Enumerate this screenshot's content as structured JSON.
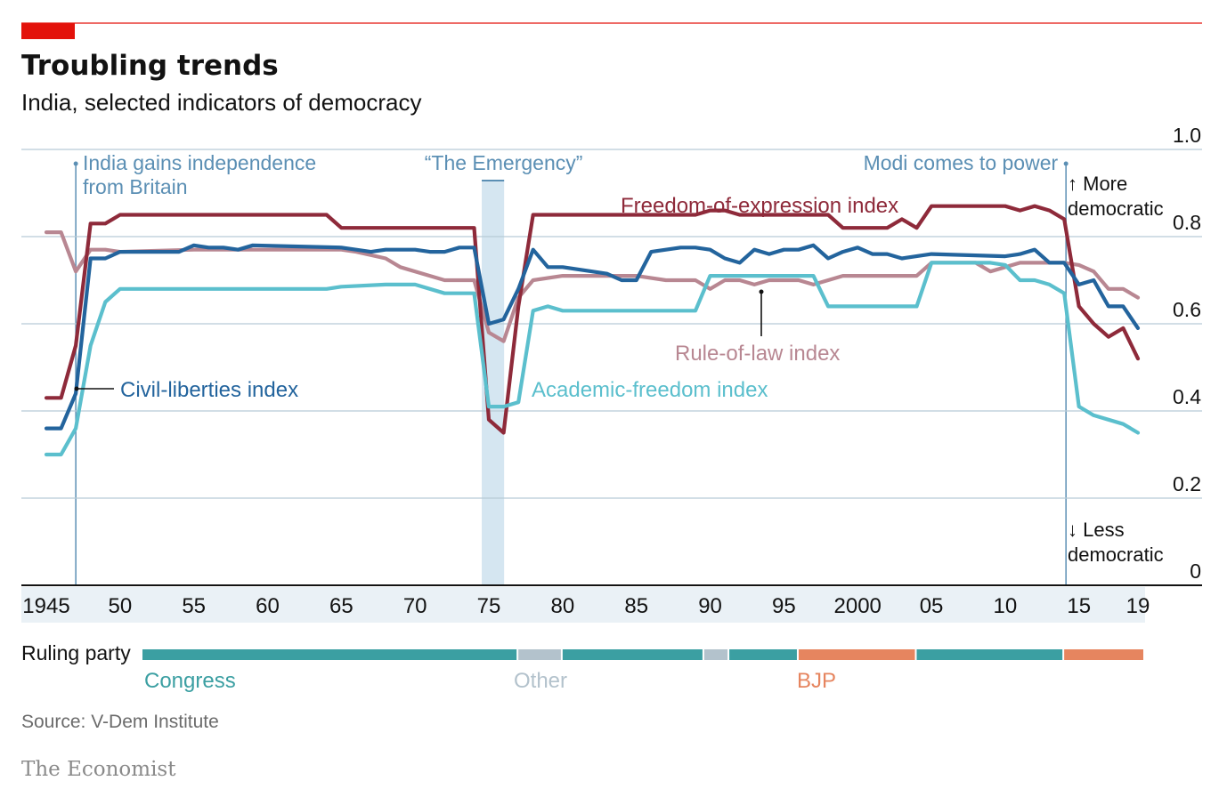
{
  "header": {
    "title": "Troubling trends",
    "subtitle": "India, selected indicators of democracy"
  },
  "chart_data": {
    "type": "line",
    "x_range": [
      1945,
      2019
    ],
    "ylim": [
      0,
      1.0
    ],
    "y_ticks": [
      {
        "value": 1.0,
        "label": "1.0"
      },
      {
        "value": 0.8,
        "label": "0.8"
      },
      {
        "value": 0.6,
        "label": "0.6"
      },
      {
        "value": 0.4,
        "label": "0.4"
      },
      {
        "value": 0.2,
        "label": "0.2"
      },
      {
        "value": 0,
        "label": "0"
      }
    ],
    "x_ticks": [
      {
        "value": 1945,
        "label": "1945"
      },
      {
        "value": 1950,
        "label": "50"
      },
      {
        "value": 1955,
        "label": "55"
      },
      {
        "value": 1960,
        "label": "60"
      },
      {
        "value": 1965,
        "label": "65"
      },
      {
        "value": 1970,
        "label": "70"
      },
      {
        "value": 1975,
        "label": "75"
      },
      {
        "value": 1980,
        "label": "80"
      },
      {
        "value": 1985,
        "label": "85"
      },
      {
        "value": 1990,
        "label": "90"
      },
      {
        "value": 1995,
        "label": "95"
      },
      {
        "value": 2000,
        "label": "2000"
      },
      {
        "value": 2005,
        "label": "05"
      },
      {
        "value": 2010,
        "label": "10"
      },
      {
        "value": 2015,
        "label": "15"
      },
      {
        "value": 2019,
        "label": "19"
      }
    ],
    "grid": true,
    "direction_labels": {
      "up": "↑ More\ndemocratic",
      "down": "↓ Less\ndemocratic"
    },
    "annotations": [
      {
        "id": "independence",
        "year": 1947,
        "text": "India gains independence\nfrom Britain"
      },
      {
        "id": "emergency",
        "start": 1975,
        "end": 1977,
        "text": "“The Emergency”"
      },
      {
        "id": "modi",
        "year": 2014,
        "text": "Modi comes to power"
      }
    ],
    "series": [
      {
        "name": "Rule-of-law index",
        "color": "#b88792",
        "points": [
          [
            1945,
            0.81
          ],
          [
            1946,
            0.81
          ],
          [
            1947,
            0.72
          ],
          [
            1948,
            0.77
          ],
          [
            1949,
            0.77
          ],
          [
            1950,
            0.765
          ],
          [
            1955,
            0.77
          ],
          [
            1960,
            0.77
          ],
          [
            1965,
            0.77
          ],
          [
            1966,
            0.765
          ],
          [
            1968,
            0.75
          ],
          [
            1969,
            0.73
          ],
          [
            1971,
            0.71
          ],
          [
            1972,
            0.7
          ],
          [
            1974,
            0.7
          ],
          [
            1975,
            0.58
          ],
          [
            1976,
            0.56
          ],
          [
            1977,
            0.66
          ],
          [
            1978,
            0.7
          ],
          [
            1980,
            0.71
          ],
          [
            1985,
            0.71
          ],
          [
            1987,
            0.7
          ],
          [
            1989,
            0.7
          ],
          [
            1990,
            0.68
          ],
          [
            1991,
            0.7
          ],
          [
            1992,
            0.7
          ],
          [
            1993,
            0.69
          ],
          [
            1994,
            0.7
          ],
          [
            1995,
            0.7
          ],
          [
            1996,
            0.7
          ],
          [
            1997,
            0.69
          ],
          [
            1998,
            0.7
          ],
          [
            1999,
            0.71
          ],
          [
            2004,
            0.71
          ],
          [
            2005,
            0.74
          ],
          [
            2008,
            0.74
          ],
          [
            2009,
            0.72
          ],
          [
            2010,
            0.73
          ],
          [
            2011,
            0.74
          ],
          [
            2013,
            0.74
          ],
          [
            2014,
            0.74
          ],
          [
            2015,
            0.735
          ],
          [
            2016,
            0.72
          ],
          [
            2017,
            0.68
          ],
          [
            2018,
            0.68
          ],
          [
            2019,
            0.66
          ]
        ]
      },
      {
        "name": "Freedom-of-expression index",
        "color": "#8e2a3a",
        "points": [
          [
            1945,
            0.43
          ],
          [
            1946,
            0.43
          ],
          [
            1947,
            0.55
          ],
          [
            1948,
            0.83
          ],
          [
            1949,
            0.83
          ],
          [
            1950,
            0.85
          ],
          [
            1954,
            0.85
          ],
          [
            1960,
            0.85
          ],
          [
            1964,
            0.85
          ],
          [
            1965,
            0.82
          ],
          [
            1970,
            0.82
          ],
          [
            1974,
            0.82
          ],
          [
            1975,
            0.38
          ],
          [
            1976,
            0.35
          ],
          [
            1977,
            0.64
          ],
          [
            1978,
            0.85
          ],
          [
            1985,
            0.85
          ],
          [
            1989,
            0.85
          ],
          [
            1990,
            0.86
          ],
          [
            1991,
            0.86
          ],
          [
            1992,
            0.85
          ],
          [
            1995,
            0.85
          ],
          [
            1998,
            0.85
          ],
          [
            1999,
            0.82
          ],
          [
            2000,
            0.82
          ],
          [
            2002,
            0.82
          ],
          [
            2003,
            0.84
          ],
          [
            2004,
            0.82
          ],
          [
            2005,
            0.87
          ],
          [
            2009,
            0.87
          ],
          [
            2010,
            0.87
          ],
          [
            2011,
            0.86
          ],
          [
            2012,
            0.87
          ],
          [
            2013,
            0.86
          ],
          [
            2014,
            0.84
          ],
          [
            2015,
            0.64
          ],
          [
            2016,
            0.6
          ],
          [
            2017,
            0.57
          ],
          [
            2018,
            0.59
          ],
          [
            2019,
            0.52
          ]
        ]
      },
      {
        "name": "Civil-liberties index",
        "color": "#23649d",
        "points": [
          [
            1945,
            0.36
          ],
          [
            1946,
            0.36
          ],
          [
            1947,
            0.44
          ],
          [
            1948,
            0.75
          ],
          [
            1949,
            0.75
          ],
          [
            1950,
            0.765
          ],
          [
            1954,
            0.765
          ],
          [
            1955,
            0.78
          ],
          [
            1956,
            0.775
          ],
          [
            1957,
            0.775
          ],
          [
            1958,
            0.77
          ],
          [
            1959,
            0.78
          ],
          [
            1965,
            0.775
          ],
          [
            1966,
            0.77
          ],
          [
            1967,
            0.765
          ],
          [
            1968,
            0.77
          ],
          [
            1970,
            0.77
          ],
          [
            1971,
            0.765
          ],
          [
            1972,
            0.765
          ],
          [
            1973,
            0.775
          ],
          [
            1974,
            0.775
          ],
          [
            1975,
            0.6
          ],
          [
            1976,
            0.61
          ],
          [
            1977,
            0.68
          ],
          [
            1978,
            0.77
          ],
          [
            1979,
            0.73
          ],
          [
            1980,
            0.73
          ],
          [
            1982,
            0.72
          ],
          [
            1983,
            0.715
          ],
          [
            1984,
            0.7
          ],
          [
            1985,
            0.7
          ],
          [
            1986,
            0.765
          ],
          [
            1987,
            0.77
          ],
          [
            1988,
            0.775
          ],
          [
            1989,
            0.775
          ],
          [
            1990,
            0.77
          ],
          [
            1991,
            0.75
          ],
          [
            1992,
            0.74
          ],
          [
            1993,
            0.77
          ],
          [
            1994,
            0.76
          ],
          [
            1995,
            0.77
          ],
          [
            1996,
            0.77
          ],
          [
            1997,
            0.78
          ],
          [
            1998,
            0.75
          ],
          [
            1999,
            0.765
          ],
          [
            2000,
            0.775
          ],
          [
            2001,
            0.76
          ],
          [
            2002,
            0.76
          ],
          [
            2003,
            0.75
          ],
          [
            2005,
            0.76
          ],
          [
            2010,
            0.755
          ],
          [
            2011,
            0.76
          ],
          [
            2012,
            0.77
          ],
          [
            2013,
            0.74
          ],
          [
            2014,
            0.74
          ],
          [
            2015,
            0.69
          ],
          [
            2016,
            0.7
          ],
          [
            2017,
            0.64
          ],
          [
            2018,
            0.64
          ],
          [
            2019,
            0.59
          ]
        ]
      },
      {
        "name": "Academic-freedom index",
        "color": "#5bbfcd",
        "points": [
          [
            1945,
            0.3
          ],
          [
            1946,
            0.3
          ],
          [
            1947,
            0.36
          ],
          [
            1948,
            0.55
          ],
          [
            1949,
            0.65
          ],
          [
            1950,
            0.68
          ],
          [
            1955,
            0.68
          ],
          [
            1960,
            0.68
          ],
          [
            1964,
            0.68
          ],
          [
            1965,
            0.685
          ],
          [
            1968,
            0.69
          ],
          [
            1969,
            0.69
          ],
          [
            1970,
            0.69
          ],
          [
            1971,
            0.68
          ],
          [
            1972,
            0.67
          ],
          [
            1973,
            0.67
          ],
          [
            1974,
            0.67
          ],
          [
            1975,
            0.41
          ],
          [
            1976,
            0.41
          ],
          [
            1977,
            0.42
          ],
          [
            1978,
            0.63
          ],
          [
            1979,
            0.64
          ],
          [
            1980,
            0.63
          ],
          [
            1985,
            0.63
          ],
          [
            1989,
            0.63
          ],
          [
            1990,
            0.71
          ],
          [
            1995,
            0.71
          ],
          [
            1997,
            0.71
          ],
          [
            1998,
            0.64
          ],
          [
            1999,
            0.64
          ],
          [
            2003,
            0.64
          ],
          [
            2004,
            0.64
          ],
          [
            2005,
            0.74
          ],
          [
            2008,
            0.74
          ],
          [
            2009,
            0.74
          ],
          [
            2010,
            0.735
          ],
          [
            2011,
            0.7
          ],
          [
            2012,
            0.7
          ],
          [
            2013,
            0.69
          ],
          [
            2014,
            0.67
          ],
          [
            2015,
            0.41
          ],
          [
            2016,
            0.39
          ],
          [
            2017,
            0.38
          ],
          [
            2018,
            0.37
          ],
          [
            2019,
            0.35
          ]
        ]
      }
    ],
    "series_labels": [
      {
        "series": "Freedom-of-expression index",
        "text": "Freedom-of-expression index"
      },
      {
        "series": "Civil-liberties index",
        "text": "Civil-liberties index"
      },
      {
        "series": "Rule-of-law index",
        "text": "Rule-of-law index"
      },
      {
        "series": "Academic-freedom index",
        "text": "Academic-freedom index"
      }
    ],
    "ruling_party": {
      "label": "Ruling party",
      "legend": [
        {
          "party": "Congress",
          "label": "Congress",
          "color": "#3b9fa2"
        },
        {
          "party": "Other",
          "label": "Other",
          "color": "#b3c2cc"
        },
        {
          "party": "BJP",
          "label": "BJP",
          "color": "#e6855f"
        }
      ],
      "periods": [
        {
          "party": "Congress",
          "start": 1947,
          "end": 1977
        },
        {
          "party": "Other",
          "start": 1977,
          "end": 1980
        },
        {
          "party": "Congress",
          "start": 1980,
          "end": 1989.6
        },
        {
          "party": "Other",
          "start": 1989.6,
          "end": 1991.3
        },
        {
          "party": "Congress",
          "start": 1991.3,
          "end": 1996
        },
        {
          "party": "BJP",
          "start": 1996,
          "end": 2004
        },
        {
          "party": "Congress",
          "start": 2004,
          "end": 2014
        },
        {
          "party": "BJP",
          "start": 2014,
          "end": 2019.5
        }
      ]
    }
  },
  "footer": {
    "source": "Source: V-Dem Institute",
    "brand": "The Economist"
  },
  "colors": {
    "accent_red": "#e3120b",
    "grid": "#b8cbd6",
    "annotation": "#5b8fb4",
    "emergency_band": "#d5e6f1"
  }
}
